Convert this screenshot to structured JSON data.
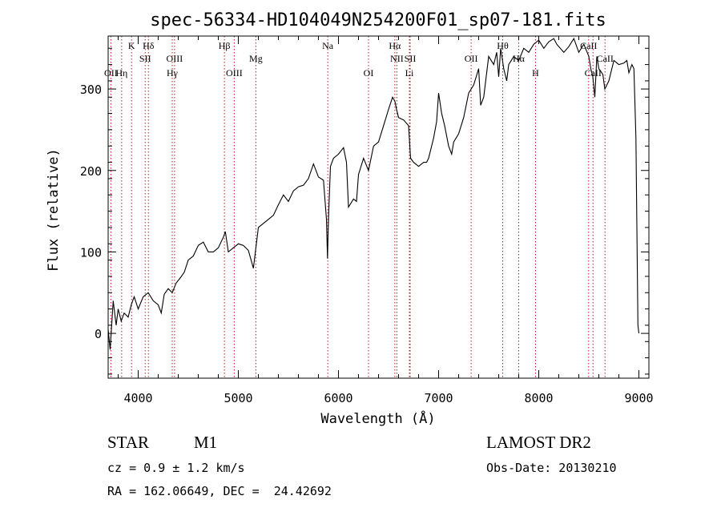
{
  "chart_data": {
    "type": "line",
    "title": "spec-56334-HD104049N254200F01_sp07-181.fits",
    "xlabel": "Wavelength (Å)",
    "ylabel": "Flux (relative)",
    "xlim": [
      3700,
      9100
    ],
    "ylim": [
      -55,
      365
    ],
    "xticks": [
      4000,
      5000,
      6000,
      7000,
      8000,
      9000
    ],
    "xtick_labels": [
      "4000",
      "5000",
      "6000",
      "7000",
      "8000",
      "9000"
    ],
    "yticks": [
      0,
      100,
      200,
      300
    ],
    "ytick_labels": [
      "0",
      "100",
      "200",
      "300"
    ],
    "grid": false,
    "line_color": "#000000",
    "marker_color": "#b0202a",
    "series": [
      {
        "x": [
          3700,
          3720,
          3750,
          3780,
          3800,
          3830,
          3860,
          3900,
          3930,
          3960,
          4000,
          4050,
          4100,
          4150,
          4200,
          4230,
          4260,
          4300,
          4340,
          4380,
          4420,
          4460,
          4500,
          4550,
          4600,
          4650,
          4700,
          4750,
          4800,
          4850,
          4870,
          4900,
          4950,
          5000,
          5050,
          5100,
          5150,
          5200,
          5250,
          5300,
          5350,
          5400,
          5450,
          5500,
          5550,
          5600,
          5650,
          5700,
          5750,
          5800,
          5850,
          5880,
          5890,
          5900,
          5920,
          5950,
          6000,
          6050,
          6080,
          6100,
          6150,
          6180,
          6200,
          6250,
          6300,
          6350,
          6400,
          6450,
          6500,
          6540,
          6563,
          6580,
          6600,
          6650,
          6700,
          6720,
          6750,
          6800,
          6850,
          6880,
          6900,
          6950,
          6980,
          7000,
          7030,
          7060,
          7100,
          7130,
          7150,
          7200,
          7250,
          7300,
          7350,
          7400,
          7420,
          7450,
          7480,
          7500,
          7550,
          7580,
          7600,
          7620,
          7650,
          7680,
          7700,
          7750,
          7800,
          7850,
          7900,
          7950,
          8000,
          8050,
          8100,
          8150,
          8180,
          8200,
          8250,
          8300,
          8350,
          8400,
          8450,
          8500,
          8520,
          8540,
          8560,
          8580,
          8600,
          8640,
          8660,
          8700,
          8750,
          8800,
          8850,
          8880,
          8900,
          8930,
          8950,
          8970,
          8990,
          9000
        ],
        "y": [
          5,
          -20,
          40,
          10,
          30,
          15,
          25,
          20,
          35,
          45,
          30,
          45,
          50,
          40,
          35,
          25,
          48,
          55,
          50,
          62,
          68,
          75,
          90,
          95,
          108,
          112,
          100,
          100,
          105,
          118,
          125,
          100,
          105,
          110,
          108,
          102,
          80,
          130,
          135,
          140,
          145,
          158,
          170,
          162,
          175,
          180,
          182,
          190,
          208,
          192,
          188,
          140,
          92,
          140,
          205,
          215,
          220,
          228,
          210,
          155,
          165,
          162,
          195,
          215,
          200,
          230,
          235,
          255,
          275,
          290,
          285,
          275,
          265,
          262,
          255,
          215,
          210,
          205,
          210,
          210,
          215,
          240,
          260,
          295,
          270,
          255,
          230,
          220,
          235,
          245,
          265,
          295,
          305,
          325,
          280,
          290,
          320,
          340,
          330,
          345,
          315,
          350,
          325,
          310,
          330,
          340,
          335,
          350,
          345,
          355,
          360,
          350,
          358,
          362,
          355,
          352,
          345,
          352,
          362,
          345,
          355,
          340,
          325,
          315,
          290,
          340,
          325,
          318,
          300,
          310,
          335,
          330,
          332,
          335,
          320,
          330,
          325,
          240,
          10,
          0
        ]
      }
    ],
    "lines": [
      {
        "label": "OII",
        "x": 3727,
        "row": 3
      },
      {
        "label": "Hη",
        "x": 3835,
        "row": 3
      },
      {
        "label": "K",
        "x": 3934,
        "row": 1
      },
      {
        "label": "Hδ",
        "x": 4102,
        "row": 1
      },
      {
        "label": "SII",
        "x": 4070,
        "row": 2
      },
      {
        "label": "OIII",
        "x": 4363,
        "row": 2
      },
      {
        "label": "Hγ",
        "x": 4340,
        "row": 3
      },
      {
        "label": "Hβ",
        "x": 4861,
        "row": 1
      },
      {
        "label": "OIII",
        "x": 4959,
        "row": 3
      },
      {
        "label": "Mg",
        "x": 5175,
        "row": 2
      },
      {
        "label": "Na",
        "x": 5893,
        "row": 1
      },
      {
        "label": "OI",
        "x": 6300,
        "row": 3
      },
      {
        "label": "Hα",
        "x": 6563,
        "row": 1
      },
      {
        "label": "NII",
        "x": 6583,
        "row": 2
      },
      {
        "label": "SII",
        "x": 6716,
        "row": 2
      },
      {
        "label": "Li",
        "x": 6708,
        "row": 3
      },
      {
        "label": "OII",
        "x": 7325,
        "row": 2
      },
      {
        "label": "Hθ",
        "x": 7640,
        "row": 1
      },
      {
        "label": "Hα",
        "x": 7800,
        "row": 2
      },
      {
        "label": "H",
        "x": 7968,
        "row": 3
      },
      {
        "label": "CaII",
        "x": 8498,
        "row": 1
      },
      {
        "label": "CaII",
        "x": 8542,
        "row": 3
      },
      {
        "label": "CaII",
        "x": 8662,
        "row": 2
      }
    ]
  },
  "info": {
    "class": "STAR",
    "subclass": "M1",
    "survey": "LAMOST DR2",
    "cz": "cz = 0.9 ± 1.2 km/s",
    "obs_date": "Obs-Date: 20130210",
    "radec": "RA = 162.06649, DEC =  24.42692"
  }
}
